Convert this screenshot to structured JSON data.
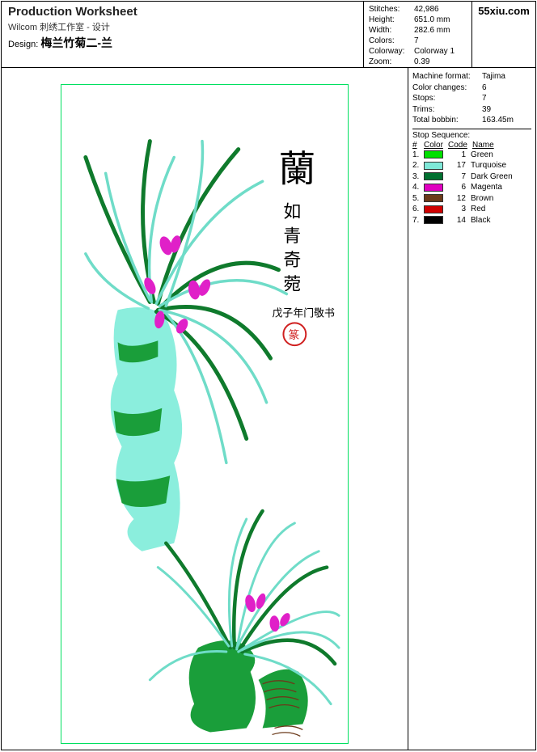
{
  "header": {
    "title": "Production Worksheet",
    "subtitle": "Wilcom 刺绣工作室 - 设计",
    "design_label": "Design:",
    "design_name": "梅兰竹菊二-兰",
    "stats": [
      {
        "label": "Stitches:",
        "value": "42,986"
      },
      {
        "label": "Height:",
        "value": "651.0 mm"
      },
      {
        "label": "Width:",
        "value": "282.6 mm"
      },
      {
        "label": "Colors:",
        "value": "7"
      },
      {
        "label": "Colorway:",
        "value": "Colorway 1"
      },
      {
        "label": "Zoom:",
        "value": "0.39"
      }
    ],
    "brand": "55xiu.com"
  },
  "side": {
    "machine": [
      {
        "label": "Machine format:",
        "value": "Tajima"
      },
      {
        "label": "Color changes:",
        "value": "6"
      },
      {
        "label": "Stops:",
        "value": "7"
      },
      {
        "label": "Trims:",
        "value": "39"
      },
      {
        "label": "Total bobbin:",
        "value": "163.45m"
      }
    ],
    "stop_sequence_title": "Stop Sequence:",
    "seq_headers": {
      "num": "#",
      "color": "Color",
      "code": "Code",
      "name": "Name"
    },
    "sequence": [
      {
        "n": "1.",
        "swatch": "#00e000",
        "code": "1",
        "name": "Green"
      },
      {
        "n": "2.",
        "swatch": "#7fe8d8",
        "code": "17",
        "name": "Turquoise"
      },
      {
        "n": "3.",
        "swatch": "#007030",
        "code": "7",
        "name": "Dark Green"
      },
      {
        "n": "4.",
        "swatch": "#e000c0",
        "code": "6",
        "name": "Magenta"
      },
      {
        "n": "5.",
        "swatch": "#6b3a1a",
        "code": "12",
        "name": "Brown"
      },
      {
        "n": "6.",
        "swatch": "#d00000",
        "code": "3",
        "name": "Red"
      },
      {
        "n": "7.",
        "swatch": "#000000",
        "code": "14",
        "name": "Black"
      }
    ]
  },
  "art": {
    "frame_border": "#00e060",
    "bg": "#ffffff",
    "colors": {
      "green": "#1a9e3a",
      "darkgreen": "#0f7a2c",
      "turquoise": "#8beedd",
      "turq2": "#6fdcc8",
      "magenta": "#e020c8",
      "brown": "#6b3a1a",
      "black": "#000000",
      "red": "#d02020"
    },
    "calligraphy": "蘭",
    "calligraphy_sub": "如青奇菀",
    "seal": "篆"
  }
}
